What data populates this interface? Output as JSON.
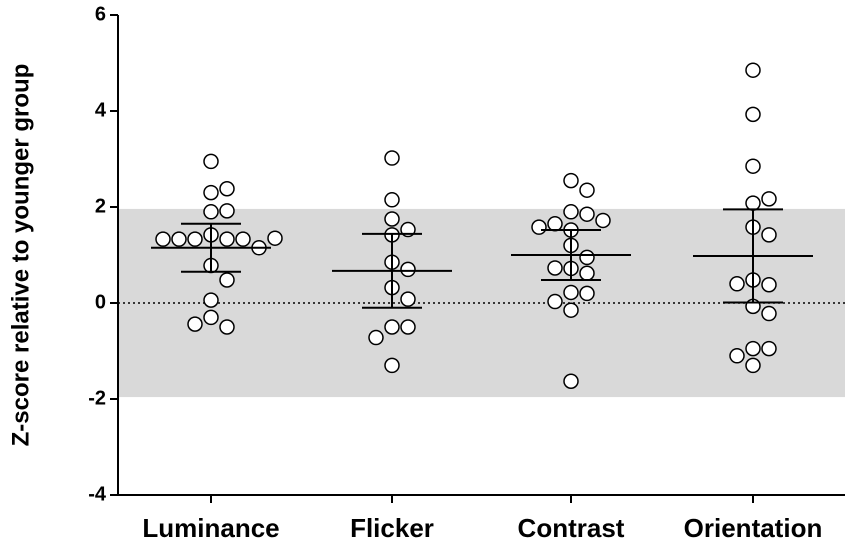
{
  "chart_data": {
    "type": "dotplot",
    "ylabel": "Z-score relative to younger group",
    "categories": [
      "Luminance",
      "Flicker",
      "Contrast",
      "Orientation"
    ],
    "points": [
      [
        2.95,
        2.3,
        2.38,
        1.9,
        1.92,
        1.42,
        1.33,
        1.33,
        1.33,
        1.33,
        1.15,
        1.33,
        1.35,
        0.78,
        0.48,
        0.06,
        -0.3,
        -0.5,
        -0.44
      ],
      [
        3.02,
        2.15,
        1.75,
        1.42,
        1.53,
        0.85,
        0.7,
        0.32,
        0.08,
        -0.5,
        -0.5,
        -0.72,
        -1.3
      ],
      [
        2.55,
        2.35,
        1.9,
        1.85,
        1.65,
        1.72,
        1.52,
        1.58,
        1.2,
        0.95,
        0.72,
        0.73,
        0.62,
        0.22,
        0.2,
        0.03,
        -0.15,
        -1.63
      ],
      [
        4.85,
        3.93,
        2.85,
        2.08,
        2.17,
        1.58,
        1.42,
        0.48,
        0.38,
        0.4,
        -0.07,
        -0.22,
        -0.95,
        -0.95,
        -1.1,
        -1.3
      ]
    ],
    "means": [
      1.15,
      0.67,
      1.0,
      0.98
    ],
    "errors": [
      0.5,
      0.77,
      0.52,
      0.97
    ],
    "reference_band": [
      -1.96,
      1.96
    ],
    "reference_line": 0,
    "ylim": [
      -4,
      6
    ],
    "yticks": [
      -4,
      -2,
      0,
      2,
      4,
      6
    ],
    "band_color": "#d9d9d9",
    "point_fill": "#ffffff",
    "point_stroke": "#000000"
  }
}
